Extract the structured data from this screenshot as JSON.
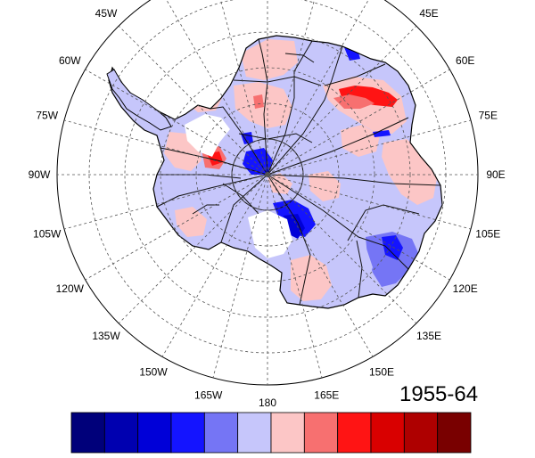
{
  "map": {
    "projection": "south-polar-stereographic",
    "period_label": "1955-64",
    "graticule": {
      "meridian_step_deg": 15,
      "parallels_shown": true,
      "style": "dashed"
    },
    "longitude_labels": [
      "180",
      "165E",
      "150E",
      "135E",
      "120E",
      "105E",
      "90E",
      "75E",
      "60E",
      "45E",
      "45W",
      "60W",
      "75W",
      "90W",
      "105W",
      "120W",
      "135W",
      "150W",
      "165W"
    ],
    "colors": {
      "ocean": "#ffffff",
      "coast": "#000000",
      "basin_lines": "#111111",
      "graticule": "#555555"
    }
  },
  "colorbar": {
    "orientation": "horizontal",
    "labels_shown": false,
    "colors": [
      "#00007a",
      "#0000b0",
      "#0000d8",
      "#1414ff",
      "#7575f5",
      "#c6c6fb",
      "#fcc6c6",
      "#f77070",
      "#ff1414",
      "#d90000",
      "#ae0000",
      "#790000"
    ]
  }
}
